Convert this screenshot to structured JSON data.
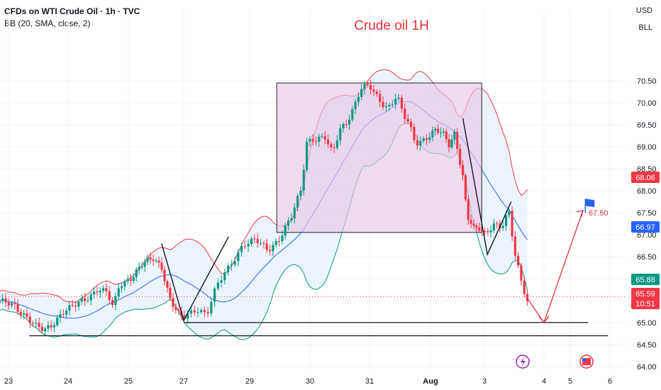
{
  "header": {
    "symbol_line": "CFDs on WTI Crude Oil · 1h · TVC",
    "indicator_line": "BB (20, SMA, close, 2)",
    "currency": "USD",
    "unit": "BLL"
  },
  "chart_data": {
    "type": "candlestick",
    "title": "Crude oil 1H",
    "y_ticks": [
      "70.50",
      "70.00",
      "69.50",
      "69.00",
      "68.50",
      "68.00",
      "67.50",
      "67.00",
      "66.50",
      "66.00",
      "65.50",
      "65.00",
      "64.50",
      "64.00"
    ],
    "y_tick_values": [
      70.5,
      70.0,
      69.5,
      69.0,
      68.5,
      68.0,
      67.5,
      67.0,
      66.5,
      66.0,
      65.5,
      65.0,
      64.5,
      64.0
    ],
    "ylim": [
      63.95,
      71.45
    ],
    "x_ticks": [
      {
        "label": "23",
        "x": 0
      },
      {
        "label": "24",
        "x": 1
      },
      {
        "label": "25",
        "x": 2
      },
      {
        "label": "27",
        "x": 3
      },
      {
        "label": "29",
        "x": 4
      },
      {
        "label": "30",
        "x": 5
      },
      {
        "label": "31",
        "x": 6
      },
      {
        "label": "Aug",
        "x": 7
      },
      {
        "label": "3",
        "x": 8
      },
      {
        "label": "4",
        "x": 9
      },
      {
        "label": "5",
        "x": 10
      },
      {
        "label": "6",
        "x": 11
      }
    ],
    "candles": [],
    "price_badges": [
      {
        "label": "68.06",
        "value": 68.06,
        "color": "#f23645"
      },
      {
        "label": "66.97",
        "value": 66.97,
        "color": "#2962ff"
      },
      {
        "label": "65.88",
        "value": 65.88,
        "color": "#089981"
      },
      {
        "label": "65.59",
        "value": 65.59,
        "color": "#f23645"
      },
      {
        "label": "10:51",
        "value": 65.42,
        "color": "#f23645"
      }
    ],
    "last_price": 65.59,
    "annotations": {
      "target_label": "67.50",
      "target_value": 67.5,
      "box": {
        "x0": 4.45,
        "x1": 7.95,
        "y0": 67.05,
        "y1": 70.45
      },
      "support_lines": [
        {
          "x0": 3.0,
          "x1": 10.45,
          "y": 65.0
        },
        {
          "x0": 0.35,
          "x1": 10.95,
          "y": 64.7
        }
      ]
    },
    "colors": {
      "up": "#089981",
      "down": "#f23645",
      "band_upper": "#f23645",
      "band_lower": "#089981",
      "basis": "#2962ff",
      "box_fill": "#e8c8e6",
      "box_edge": "#222222",
      "title": "#e0323a"
    },
    "grid": true
  }
}
